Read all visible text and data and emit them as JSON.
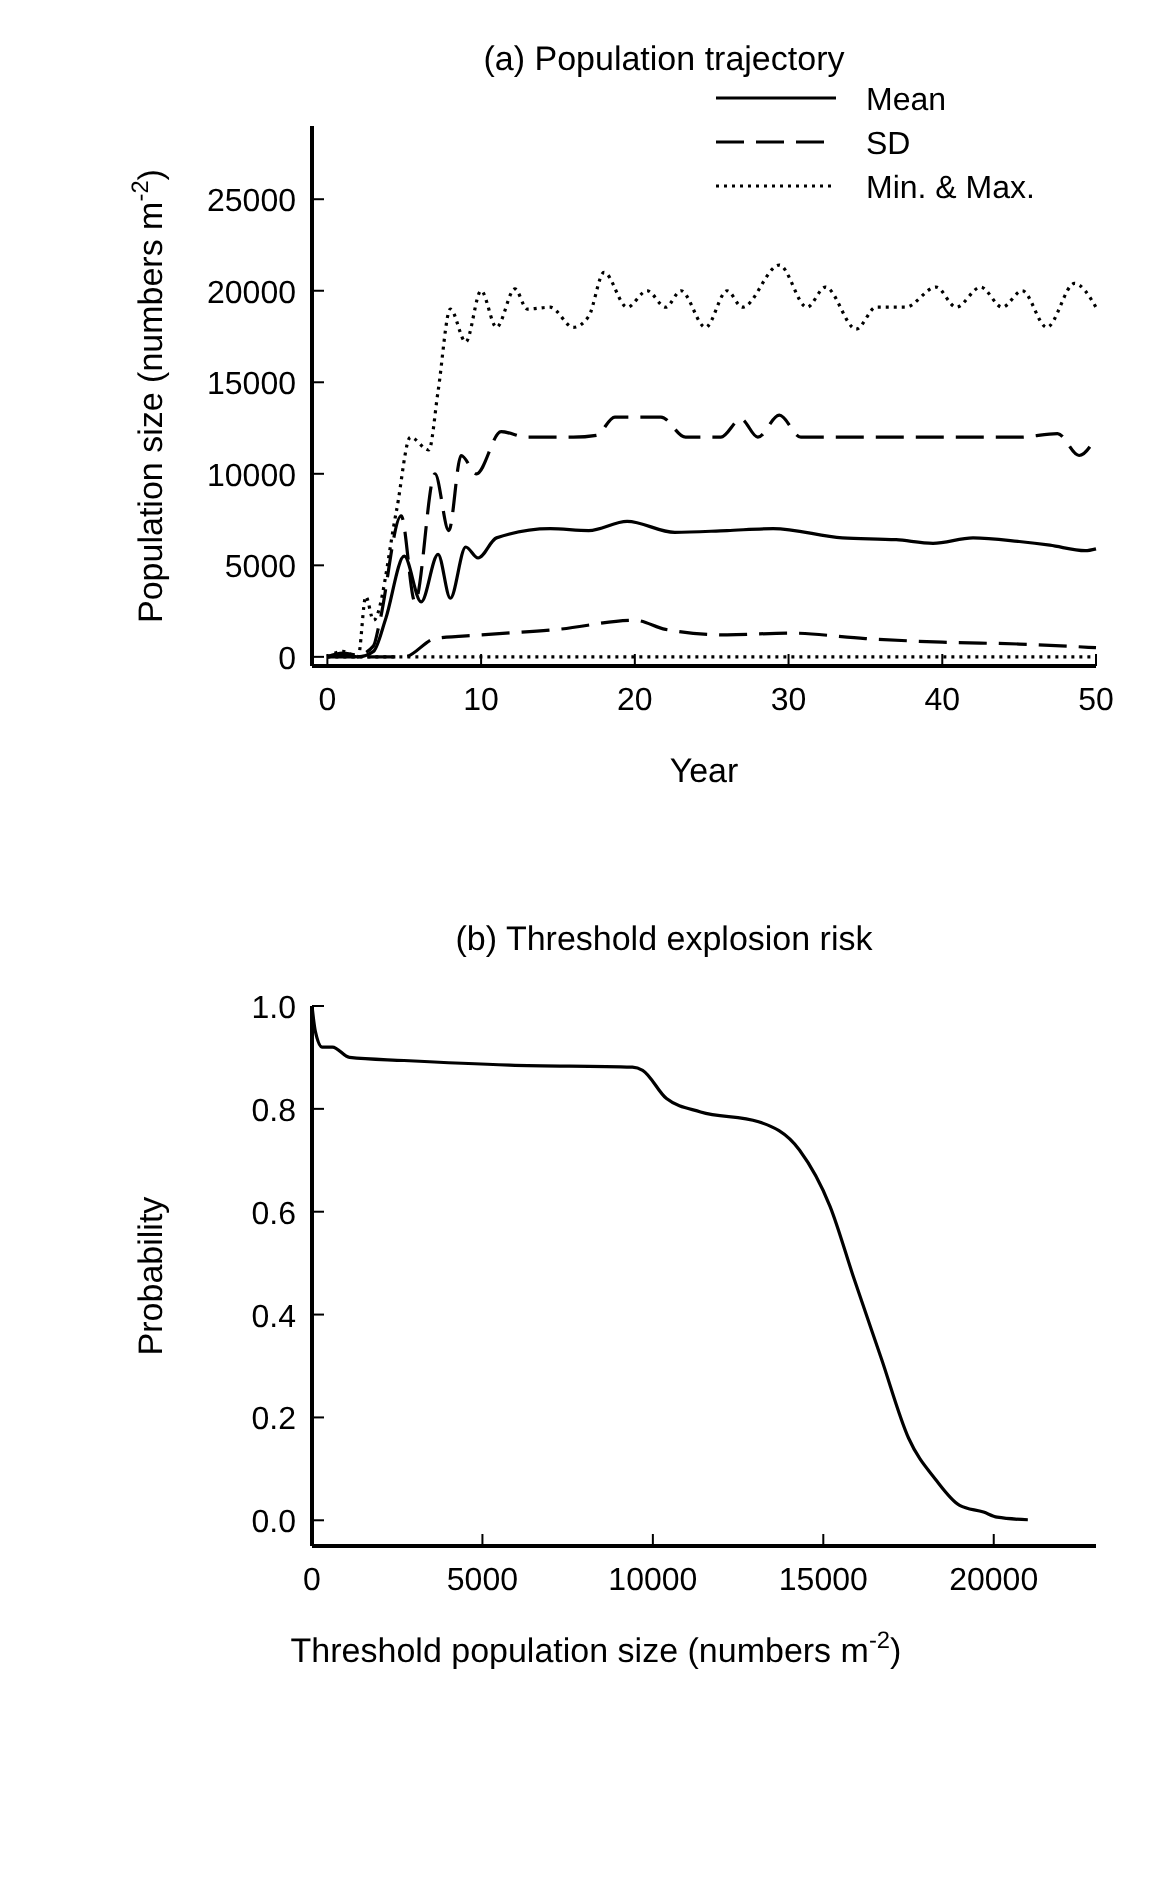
{
  "chart_data": [
    {
      "type": "line",
      "title": "(a) Population trajectory",
      "xlabel": "Year",
      "ylabel": "Population size (numbers m$^{-2}$)",
      "xlim": [
        -1,
        50
      ],
      "ylim": [
        -500,
        29000
      ],
      "xticks": [
        0,
        10,
        20,
        30,
        40,
        50
      ],
      "yticks": [
        0,
        5000,
        10000,
        15000,
        20000,
        25000
      ],
      "legend": "top right",
      "grid": false,
      "series": [
        {
          "name": "Mean",
          "color": "#000000",
          "line_style": "solid",
          "x": [
            0,
            1,
            2,
            3,
            3.8,
            5,
            6.1,
            7.2,
            8,
            9,
            9.8,
            11,
            14.5,
            17,
            19.5,
            22.6,
            26,
            29,
            33.5,
            37,
            39.4,
            42,
            45,
            47,
            49.3,
            50
          ],
          "values": [
            0,
            100,
            0,
            300,
            2100,
            5500,
            3000,
            5600,
            3200,
            6000,
            5400,
            6500,
            7000,
            6900,
            7400,
            6800,
            6900,
            7000,
            6500,
            6400,
            6200,
            6500,
            6300,
            6100,
            5800,
            5900
          ]
        },
        {
          "name": "SD",
          "color": "#000000",
          "line_style": "dashed",
          "x": [
            0,
            1,
            2,
            3,
            3.4,
            4.8,
            5.7,
            7,
            7.9,
            8.7,
            9.7,
            11.3,
            13,
            16,
            17.5,
            18.7,
            21.7,
            23.3,
            25.6,
            26.9,
            28,
            29.4,
            30.8,
            35,
            40,
            45,
            47.5,
            48.9,
            50
          ],
          "values": [
            0,
            200,
            100,
            600,
            1900,
            7700,
            3000,
            10000,
            6900,
            11000,
            10000,
            12300,
            12000,
            12000,
            12100,
            13100,
            13100,
            12000,
            12000,
            13000,
            12000,
            13200,
            12000,
            12000,
            12000,
            12000,
            12200,
            11000,
            12000
          ]
        },
        {
          "color": "#000000",
          "line_style": "dashed",
          "x": [
            0,
            3,
            5,
            7,
            10,
            15,
            20,
            22,
            26,
            30,
            35,
            40,
            45,
            50
          ],
          "values": [
            0,
            0,
            0,
            1000,
            1200,
            1500,
            2000,
            1500,
            1200,
            1300,
            1000,
            800,
            700,
            500
          ]
        },
        {
          "name": "Min. & Max.",
          "color": "#000000",
          "line_style": "dotted",
          "x": [
            0,
            1,
            2,
            2.5,
            3,
            4.5,
            5.4,
            6.6,
            7.2,
            8,
            9,
            10,
            11,
            12.2,
            13,
            14.5,
            16,
            17,
            18,
            19.5,
            20.8,
            22,
            23,
            24.6,
            26,
            27,
            29.4,
            31.2,
            32.4,
            34.4,
            35.7,
            37.6,
            39.6,
            40.9,
            42.5,
            43.9,
            45.2,
            46.8,
            48.6,
            50
          ],
          "values": [
            0,
            300,
            0,
            3300,
            2000,
            8000,
            12000,
            11300,
            14500,
            19000,
            17200,
            20000,
            18000,
            20100,
            19000,
            19100,
            18000,
            18600,
            21000,
            19100,
            20000,
            19100,
            20000,
            18000,
            20000,
            19100,
            21400,
            19100,
            20200,
            17900,
            19100,
            19100,
            20200,
            19100,
            20200,
            19100,
            20000,
            18000,
            20400,
            19100
          ]
        },
        {
          "color": "#000000",
          "line_style": "dotted",
          "x": [
            0,
            10,
            20,
            30,
            40,
            50
          ],
          "values": [
            0,
            0,
            0,
            0,
            0,
            0
          ]
        }
      ]
    },
    {
      "type": "line",
      "title": "(b) Threshold explosion risk",
      "xlabel": "Threshold population size (numbers m$^{-2}$)",
      "ylabel": "Probability",
      "xlim": [
        0,
        23000
      ],
      "ylim": [
        -0.05,
        1.0
      ],
      "xticks": [
        0,
        5000,
        10000,
        15000,
        20000
      ],
      "yticks": [
        {
          "value": 0,
          "label": "0.0"
        },
        0.2,
        0.4,
        0.6,
        0.8,
        {
          "value": 1,
          "label": "1.0"
        }
      ],
      "grid": false,
      "series": [
        {
          "color": "#000000",
          "line_style": "solid",
          "x": [
            0,
            100,
            300,
            600,
            1100,
            2700,
            5800,
            9400,
            9700,
            10400,
            11400,
            13100,
            14300,
            15200,
            15900,
            16700,
            17500,
            18300,
            19000,
            19700,
            20100,
            21000
          ],
          "values": [
            1.0,
            0.95,
            0.92,
            0.92,
            0.9,
            0.894,
            0.885,
            0.881,
            0.875,
            0.82,
            0.794,
            0.775,
            0.72,
            0.61,
            0.47,
            0.315,
            0.16,
            0.079,
            0.029,
            0.016,
            0.006,
            0.001
          ]
        }
      ]
    }
  ]
}
